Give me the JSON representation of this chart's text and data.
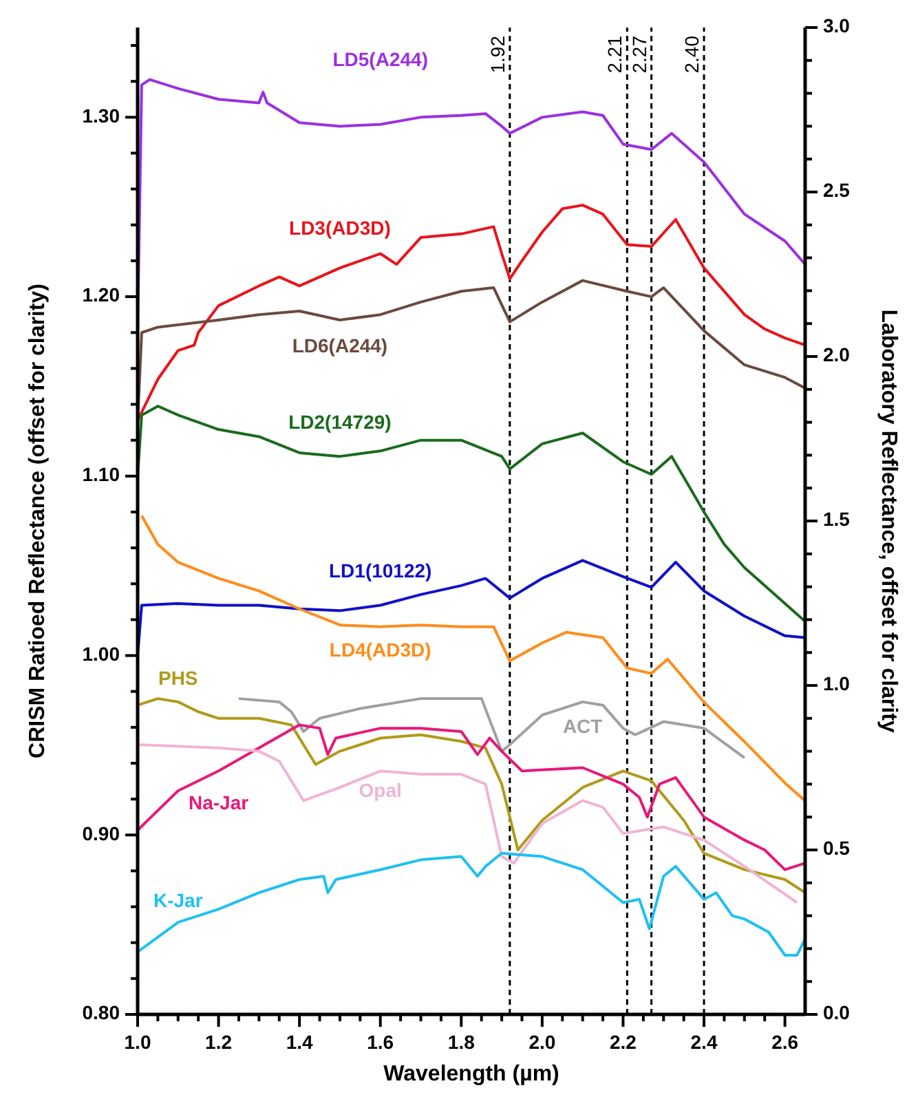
{
  "chart_data": {
    "type": "line",
    "xlabel": "Wavelength (µm)",
    "ylabel": "CRISM Ratioed Reflectance  (offset for clarity)",
    "y2label": "Laboratory Reflectance, offset for clarity",
    "marker": "none",
    "line_style": "solid",
    "xlim": [
      1.0,
      2.65
    ],
    "xticks": [
      {
        "value": 1.0,
        "label": "1.0"
      },
      {
        "value": 1.05,
        "label": null
      },
      {
        "value": 1.1,
        "label": null
      },
      {
        "value": 1.15,
        "label": null
      },
      {
        "value": 1.2,
        "label": "1.2"
      },
      {
        "value": 1.25,
        "label": null
      },
      {
        "value": 1.3,
        "label": null
      },
      {
        "value": 1.35,
        "label": null
      },
      {
        "value": 1.4,
        "label": "1.4"
      },
      {
        "value": 1.45,
        "label": null
      },
      {
        "value": 1.5,
        "label": null
      },
      {
        "value": 1.55,
        "label": null
      },
      {
        "value": 1.6,
        "label": "1.6"
      },
      {
        "value": 1.65,
        "label": null
      },
      {
        "value": 1.7,
        "label": null
      },
      {
        "value": 1.75,
        "label": null
      },
      {
        "value": 1.8,
        "label": "1.8"
      },
      {
        "value": 1.85,
        "label": null
      },
      {
        "value": 1.9,
        "label": null
      },
      {
        "value": 1.95,
        "label": null
      },
      {
        "value": 2.0,
        "label": "2.0"
      },
      {
        "value": 2.05,
        "label": null
      },
      {
        "value": 2.1,
        "label": null
      },
      {
        "value": 2.15,
        "label": null
      },
      {
        "value": 2.2,
        "label": "2.2"
      },
      {
        "value": 2.25,
        "label": null
      },
      {
        "value": 2.3,
        "label": null
      },
      {
        "value": 2.35,
        "label": null
      },
      {
        "value": 2.4,
        "label": "2.4"
      },
      {
        "value": 2.45,
        "label": null
      },
      {
        "value": 2.5,
        "label": null
      },
      {
        "value": 2.55,
        "label": null
      },
      {
        "value": 2.6,
        "label": "2.6"
      }
    ],
    "ylim": [
      0.8,
      1.35
    ],
    "yticks": [
      {
        "value": 0.8,
        "label": "0.80"
      },
      {
        "value": 0.82,
        "label": null
      },
      {
        "value": 0.84,
        "label": null
      },
      {
        "value": 0.86,
        "label": null
      },
      {
        "value": 0.88,
        "label": null
      },
      {
        "value": 0.9,
        "label": "0.90"
      },
      {
        "value": 0.92,
        "label": null
      },
      {
        "value": 0.94,
        "label": null
      },
      {
        "value": 0.96,
        "label": null
      },
      {
        "value": 0.98,
        "label": null
      },
      {
        "value": 1.0,
        "label": "1.00"
      },
      {
        "value": 1.02,
        "label": null
      },
      {
        "value": 1.04,
        "label": null
      },
      {
        "value": 1.06,
        "label": null
      },
      {
        "value": 1.08,
        "label": null
      },
      {
        "value": 1.1,
        "label": "1.10"
      },
      {
        "value": 1.12,
        "label": null
      },
      {
        "value": 1.14,
        "label": null
      },
      {
        "value": 1.16,
        "label": null
      },
      {
        "value": 1.18,
        "label": null
      },
      {
        "value": 1.2,
        "label": "1.20"
      },
      {
        "value": 1.22,
        "label": null
      },
      {
        "value": 1.24,
        "label": null
      },
      {
        "value": 1.26,
        "label": null
      },
      {
        "value": 1.28,
        "label": null
      },
      {
        "value": 1.3,
        "label": "1.30"
      },
      {
        "value": 1.32,
        "label": null
      },
      {
        "value": 1.34,
        "label": null
      }
    ],
    "y2lim": [
      0,
      3.0
    ],
    "y2ticks": [
      {
        "value": 0,
        "label": "0.0"
      },
      {
        "value": 0.1,
        "label": null
      },
      {
        "value": 0.2,
        "label": null
      },
      {
        "value": 0.3,
        "label": null
      },
      {
        "value": 0.4,
        "label": null
      },
      {
        "value": 0.5,
        "label": "0.5"
      },
      {
        "value": 0.6,
        "label": null
      },
      {
        "value": 0.7,
        "label": null
      },
      {
        "value": 0.8,
        "label": null
      },
      {
        "value": 0.9,
        "label": null
      },
      {
        "value": 1.0,
        "label": "1.0"
      },
      {
        "value": 1.1,
        "label": null
      },
      {
        "value": 1.2,
        "label": null
      },
      {
        "value": 1.3,
        "label": null
      },
      {
        "value": 1.4,
        "label": null
      },
      {
        "value": 1.5,
        "label": "1.5"
      },
      {
        "value": 1.6,
        "label": null
      },
      {
        "value": 1.7,
        "label": null
      },
      {
        "value": 1.8,
        "label": null
      },
      {
        "value": 1.9,
        "label": null
      },
      {
        "value": 2.0,
        "label": "2.0"
      },
      {
        "value": 2.1,
        "label": null
      },
      {
        "value": 2.2,
        "label": null
      },
      {
        "value": 2.3,
        "label": null
      },
      {
        "value": 2.4,
        "label": null
      },
      {
        "value": 2.5,
        "label": "2.5"
      },
      {
        "value": 2.6,
        "label": null
      },
      {
        "value": 2.7,
        "label": null
      },
      {
        "value": 2.8,
        "label": null
      },
      {
        "value": 2.9,
        "label": null
      },
      {
        "value": 3.0,
        "label": "3.0"
      }
    ],
    "ref_lines": [
      {
        "axis": "x",
        "value": 1.92,
        "label": "1.92",
        "color": "#000000",
        "line_style": "dashed"
      },
      {
        "axis": "x",
        "value": 2.21,
        "label": "2.21",
        "color": "#000000",
        "line_style": "dashed"
      },
      {
        "axis": "x",
        "value": 2.27,
        "label": "2.27",
        "color": "#000000",
        "line_style": "dashed"
      },
      {
        "axis": "x",
        "value": 2.4,
        "label": "2.40",
        "color": "#000000",
        "line_style": "dashed"
      }
    ],
    "series": [
      {
        "name": "LD5(A244)",
        "color": "#9b30e0",
        "axis": "y",
        "x": [
          1.0,
          1.01,
          1.03,
          1.1,
          1.2,
          1.3,
          1.31,
          1.32,
          1.4,
          1.5,
          1.6,
          1.7,
          1.8,
          1.86,
          1.9,
          1.92,
          2.0,
          2.1,
          2.15,
          2.2,
          2.27,
          2.32,
          2.4,
          2.5,
          2.6,
          2.65
        ],
        "values": [
          1.18,
          1.318,
          1.321,
          1.316,
          1.31,
          1.308,
          1.314,
          1.308,
          1.297,
          1.295,
          1.296,
          1.3,
          1.301,
          1.302,
          1.295,
          1.291,
          1.3,
          1.303,
          1.301,
          1.285,
          1.282,
          1.291,
          1.275,
          1.246,
          1.231,
          1.218
        ]
      },
      {
        "name": "LD3(AD3D)",
        "color": "#e8141c",
        "axis": "y",
        "x": [
          1.0,
          1.05,
          1.1,
          1.14,
          1.15,
          1.2,
          1.3,
          1.35,
          1.4,
          1.5,
          1.6,
          1.64,
          1.7,
          1.8,
          1.88,
          1.9,
          1.92,
          1.95,
          2.0,
          2.05,
          2.1,
          2.15,
          2.21,
          2.27,
          2.33,
          2.4,
          2.5,
          2.55,
          2.6,
          2.65
        ],
        "values": [
          1.131,
          1.154,
          1.17,
          1.173,
          1.18,
          1.195,
          1.206,
          1.211,
          1.206,
          1.216,
          1.224,
          1.218,
          1.233,
          1.235,
          1.239,
          1.224,
          1.21,
          1.22,
          1.236,
          1.249,
          1.251,
          1.246,
          1.229,
          1.228,
          1.243,
          1.216,
          1.19,
          1.182,
          1.177,
          1.173
        ]
      },
      {
        "name": "LD6(A244)",
        "color": "#6b4a3e",
        "axis": "y",
        "x": [
          1.0,
          1.01,
          1.05,
          1.2,
          1.3,
          1.4,
          1.5,
          1.6,
          1.7,
          1.8,
          1.88,
          1.92,
          2.0,
          2.1,
          2.21,
          2.27,
          2.3,
          2.4,
          2.5,
          2.6,
          2.65
        ],
        "values": [
          1.13,
          1.18,
          1.183,
          1.187,
          1.19,
          1.192,
          1.187,
          1.19,
          1.197,
          1.203,
          1.205,
          1.186,
          1.197,
          1.209,
          1.203,
          1.2,
          1.205,
          1.181,
          1.162,
          1.155,
          1.149
        ]
      },
      {
        "name": "LD2(14729)",
        "color": "#1a6b1e",
        "axis": "y",
        "x": [
          1.0,
          1.01,
          1.05,
          1.1,
          1.2,
          1.3,
          1.4,
          1.5,
          1.6,
          1.7,
          1.8,
          1.9,
          1.92,
          2.0,
          2.1,
          2.2,
          2.27,
          2.32,
          2.4,
          2.45,
          2.5,
          2.65
        ],
        "values": [
          1.1,
          1.134,
          1.139,
          1.134,
          1.126,
          1.122,
          1.113,
          1.111,
          1.114,
          1.12,
          1.12,
          1.111,
          1.104,
          1.118,
          1.124,
          1.108,
          1.101,
          1.111,
          1.08,
          1.062,
          1.049,
          1.019
        ]
      },
      {
        "name": "LD1(10122)",
        "color": "#1010c8",
        "axis": "y",
        "x": [
          1.0,
          1.01,
          1.1,
          1.2,
          1.3,
          1.4,
          1.5,
          1.6,
          1.7,
          1.8,
          1.86,
          1.92,
          2.0,
          2.1,
          2.2,
          2.27,
          2.33,
          2.4,
          2.5,
          2.6,
          2.65
        ],
        "values": [
          1.0,
          1.028,
          1.029,
          1.028,
          1.028,
          1.026,
          1.025,
          1.028,
          1.034,
          1.039,
          1.043,
          1.032,
          1.043,
          1.053,
          1.044,
          1.038,
          1.052,
          1.036,
          1.022,
          1.011,
          1.01
        ]
      },
      {
        "name": "LD4(AD3D)",
        "color": "#ff8c1a",
        "axis": "y",
        "x": [
          1.01,
          1.05,
          1.1,
          1.2,
          1.3,
          1.4,
          1.5,
          1.6,
          1.7,
          1.8,
          1.88,
          1.92,
          2.0,
          2.06,
          2.15,
          2.21,
          2.27,
          2.31,
          2.4,
          2.5,
          2.6,
          2.65
        ],
        "values": [
          1.078,
          1.062,
          1.052,
          1.043,
          1.036,
          1.026,
          1.017,
          1.016,
          1.017,
          1.016,
          1.016,
          0.997,
          1.007,
          1.013,
          1.01,
          0.993,
          0.99,
          0.998,
          0.974,
          0.952,
          0.929,
          0.919
        ]
      },
      {
        "name": "PHS",
        "color": "#b09a1a",
        "axis": "y2",
        "x": [
          1.0,
          1.05,
          1.1,
          1.15,
          1.2,
          1.3,
          1.38,
          1.44,
          1.5,
          1.6,
          1.7,
          1.8,
          1.86,
          1.9,
          1.94,
          2.0,
          2.1,
          2.2,
          2.27,
          2.35,
          2.4,
          2.5,
          2.6,
          2.65
        ],
        "values": [
          0.94,
          0.96,
          0.95,
          0.92,
          0.9,
          0.9,
          0.88,
          0.76,
          0.8,
          0.84,
          0.85,
          0.83,
          0.81,
          0.7,
          0.5,
          0.59,
          0.69,
          0.74,
          0.71,
          0.59,
          0.49,
          0.44,
          0.41,
          0.37
        ]
      },
      {
        "name": "ACT",
        "color": "#a0a0a0",
        "axis": "y2",
        "x": [
          1.25,
          1.35,
          1.38,
          1.41,
          1.45,
          1.55,
          1.7,
          1.8,
          1.85,
          1.9,
          1.92,
          2.0,
          2.1,
          2.15,
          2.2,
          2.23,
          2.3,
          2.4,
          2.5
        ],
        "values": [
          0.96,
          0.95,
          0.92,
          0.86,
          0.9,
          0.93,
          0.96,
          0.96,
          0.96,
          0.8,
          0.82,
          0.91,
          0.95,
          0.94,
          0.87,
          0.85,
          0.89,
          0.87,
          0.78
        ]
      },
      {
        "name": "Na-Jar",
        "color": "#e8187a",
        "axis": "y2",
        "x": [
          1.0,
          1.1,
          1.2,
          1.3,
          1.4,
          1.45,
          1.47,
          1.49,
          1.6,
          1.7,
          1.8,
          1.84,
          1.87,
          1.9,
          1.95,
          2.1,
          2.2,
          2.24,
          2.26,
          2.29,
          2.33,
          2.4,
          2.5,
          2.55,
          2.6,
          2.65
        ],
        "values": [
          0.56,
          0.68,
          0.74,
          0.81,
          0.88,
          0.87,
          0.79,
          0.84,
          0.87,
          0.87,
          0.86,
          0.79,
          0.84,
          0.8,
          0.74,
          0.75,
          0.7,
          0.66,
          0.6,
          0.7,
          0.72,
          0.6,
          0.53,
          0.5,
          0.44,
          0.46
        ]
      },
      {
        "name": "Opal",
        "color": "#f0b4d4",
        "axis": "y2",
        "x": [
          1.0,
          1.2,
          1.3,
          1.35,
          1.38,
          1.41,
          1.5,
          1.6,
          1.7,
          1.8,
          1.86,
          1.9,
          1.93,
          2.0,
          2.1,
          2.15,
          2.2,
          2.3,
          2.4,
          2.5,
          2.63
        ],
        "values": [
          0.82,
          0.81,
          0.8,
          0.77,
          0.71,
          0.65,
          0.69,
          0.74,
          0.73,
          0.73,
          0.7,
          0.48,
          0.46,
          0.58,
          0.65,
          0.63,
          0.55,
          0.57,
          0.53,
          0.45,
          0.34
        ]
      },
      {
        "name": "K-Jar",
        "color": "#20c0f0",
        "axis": "y2",
        "x": [
          1.0,
          1.1,
          1.2,
          1.3,
          1.4,
          1.46,
          1.47,
          1.49,
          1.6,
          1.7,
          1.8,
          1.84,
          1.86,
          1.9,
          2.0,
          2.1,
          2.2,
          2.24,
          2.265,
          2.3,
          2.33,
          2.4,
          2.43,
          2.47,
          2.5,
          2.56,
          2.6,
          2.63,
          2.65
        ],
        "values": [
          0.19,
          0.28,
          0.32,
          0.37,
          0.41,
          0.42,
          0.37,
          0.41,
          0.44,
          0.47,
          0.48,
          0.42,
          0.45,
          0.49,
          0.48,
          0.44,
          0.34,
          0.35,
          0.26,
          0.42,
          0.45,
          0.35,
          0.37,
          0.3,
          0.29,
          0.25,
          0.18,
          0.18,
          0.23
        ]
      }
    ]
  }
}
